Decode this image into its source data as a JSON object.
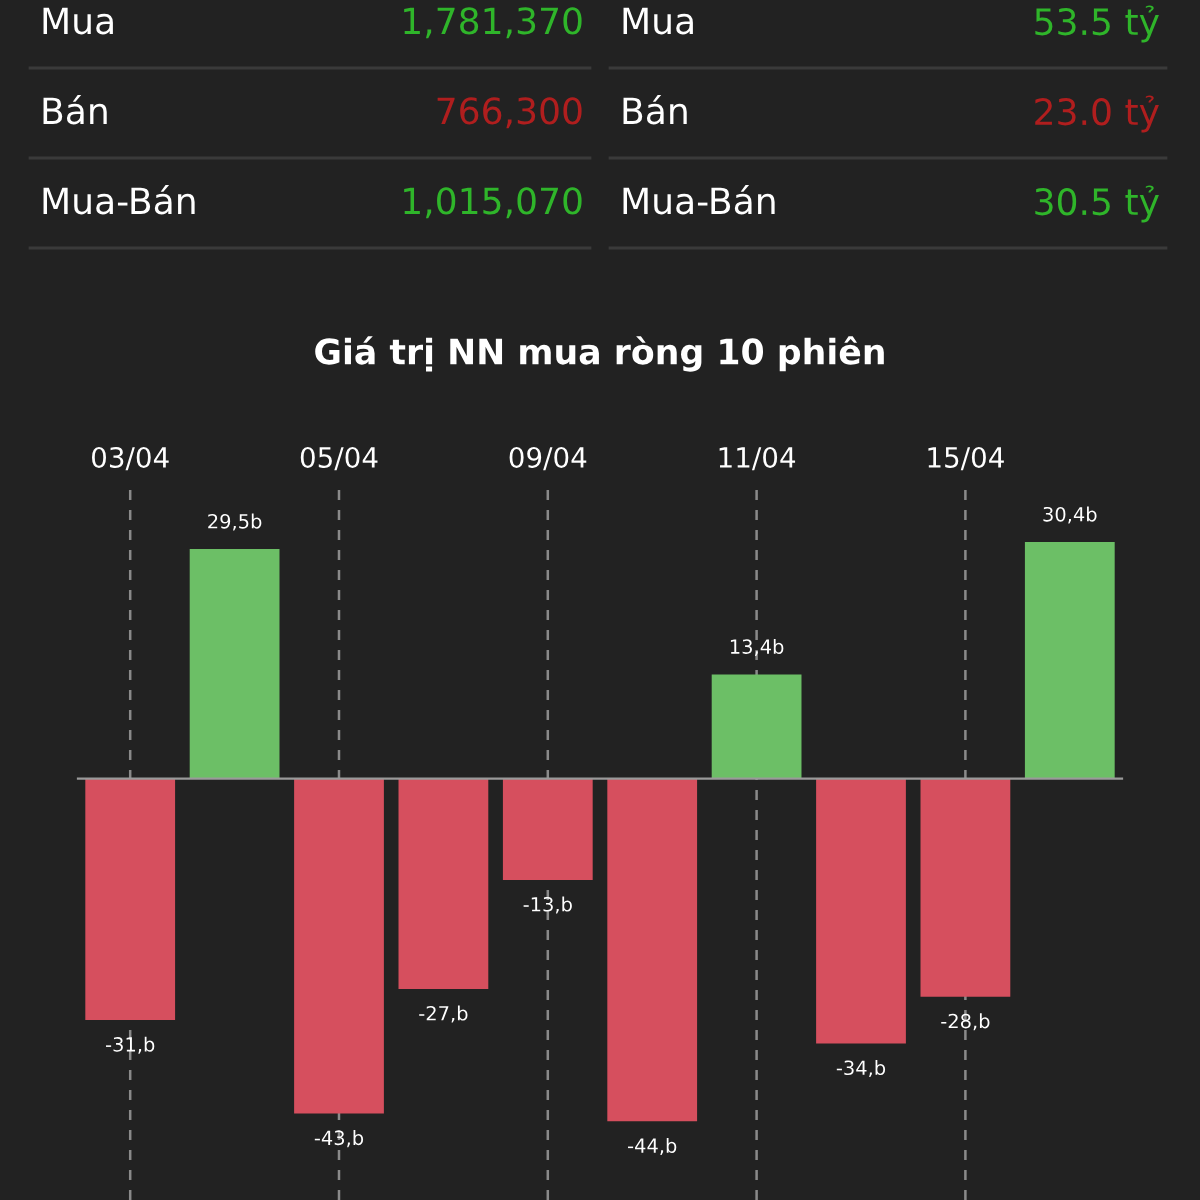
{
  "chart_data": [
    {
      "type": "other",
      "categories": [
        "Mua",
        "Bán",
        "Mua-Bán",
        "Mua",
        "Bán",
        "Mua-Bán"
      ],
      "value_labels": [
        "1,781,370",
        "766,300",
        "1,015,070",
        "53.5 tỷ",
        "23.0 tỷ",
        "30.5 tỷ"
      ],
      "colors": [
        "#2fb52a",
        "#b01e1e",
        "#2fb52a",
        "#2fb52a",
        "#b01e1e",
        "#2fb52a"
      ]
    },
    {
      "type": "bar",
      "title": "Giá trị NN mua ròng 10 phiên",
      "categories": [
        "03/04",
        null,
        "05/04",
        null,
        "09/04",
        null,
        "11/04",
        null,
        "15/04",
        null
      ],
      "values": [
        -31,
        29.5,
        -43,
        -27,
        -13,
        -44,
        13.4,
        -34,
        -28,
        30.4
      ],
      "colors": [
        "#d64f5e",
        "#6cbf66",
        "#d64f5e",
        "#d64f5e",
        "#d64f5e",
        "#d64f5e",
        "#6cbf66",
        "#d64f5e",
        "#d64f5e",
        "#6cbf66"
      ],
      "value_labels": [
        "-31,b",
        "29,5b",
        "-43,b",
        "-27,b",
        "-13,b",
        "-44,b",
        "13,4b",
        "-34,b",
        "-28,b",
        "30,4b"
      ],
      "grid": "x"
    }
  ]
}
